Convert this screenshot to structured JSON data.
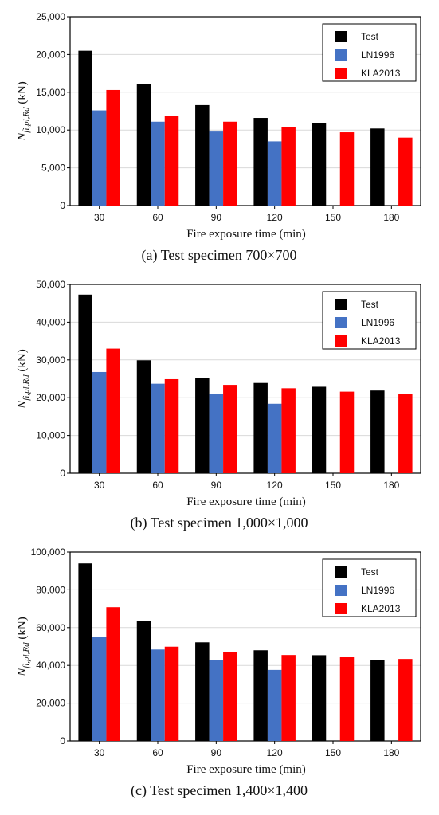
{
  "chart_data": [
    {
      "type": "bar",
      "caption": "(a) Test specimen 700×700",
      "categories": [
        "30",
        "60",
        "90",
        "120",
        "150",
        "180"
      ],
      "xlabel": "Fire exposure time (min)",
      "ylabel_main": "N",
      "ylabel_sub": "fi,pl,Rd",
      "ylabel_unit": " (kN)",
      "ylim": [
        0,
        25000
      ],
      "yticks": [
        "0",
        "5,000",
        "10,000",
        "15,000",
        "20,000",
        "25,000"
      ],
      "series": [
        {
          "name": "Test",
          "color": "#000000",
          "values": [
            20500,
            16100,
            13300,
            11600,
            10900,
            10200
          ]
        },
        {
          "name": "LN1996",
          "color": "#4472C4",
          "values": [
            12600,
            11100,
            9800,
            8500,
            null,
            null
          ]
        },
        {
          "name": "KLA2013",
          "color": "#FF0000",
          "values": [
            15300,
            11900,
            11100,
            10400,
            9700,
            9000
          ]
        }
      ],
      "legend": "top-right",
      "grid": true
    },
    {
      "type": "bar",
      "caption": "(b) Test specimen 1,000×1,000",
      "categories": [
        "30",
        "60",
        "90",
        "120",
        "150",
        "180"
      ],
      "xlabel": "Fire exposure time (min)",
      "ylabel_main": "N",
      "ylabel_sub": "fi,pl,Rd",
      "ylabel_unit": " (kN)",
      "ylim": [
        0,
        50000
      ],
      "yticks": [
        "0",
        "10,000",
        "20,000",
        "30,000",
        "40,000",
        "50,000"
      ],
      "series": [
        {
          "name": "Test",
          "color": "#000000",
          "values": [
            47300,
            29900,
            25300,
            23900,
            22900,
            21900
          ]
        },
        {
          "name": "LN1996",
          "color": "#4472C4",
          "values": [
            26800,
            23700,
            21000,
            18400,
            null,
            null
          ]
        },
        {
          "name": "KLA2013",
          "color": "#FF0000",
          "values": [
            33000,
            24900,
            23400,
            22500,
            21600,
            21000
          ]
        }
      ],
      "legend": "top-right",
      "grid": true
    },
    {
      "type": "bar",
      "caption": "(c) Test specimen 1,400×1,400",
      "categories": [
        "30",
        "60",
        "90",
        "120",
        "150",
        "180"
      ],
      "xlabel": "Fire exposure time (min)",
      "ylabel_main": "N",
      "ylabel_sub": "fi,pl,Rd",
      "ylabel_unit": " (kN)",
      "ylim": [
        0,
        100000
      ],
      "yticks": [
        "0",
        "20,000",
        "40,000",
        "60,000",
        "80,000",
        "100,000"
      ],
      "series": [
        {
          "name": "Test",
          "color": "#000000",
          "values": [
            94000,
            63700,
            52200,
            48000,
            45400,
            43000
          ]
        },
        {
          "name": "LN1996",
          "color": "#4472C4",
          "values": [
            55000,
            48400,
            42900,
            37600,
            null,
            null
          ]
        },
        {
          "name": "KLA2013",
          "color": "#FF0000",
          "values": [
            70800,
            49900,
            46900,
            45500,
            44300,
            43400
          ]
        }
      ],
      "legend": "top-right",
      "grid": true
    }
  ]
}
